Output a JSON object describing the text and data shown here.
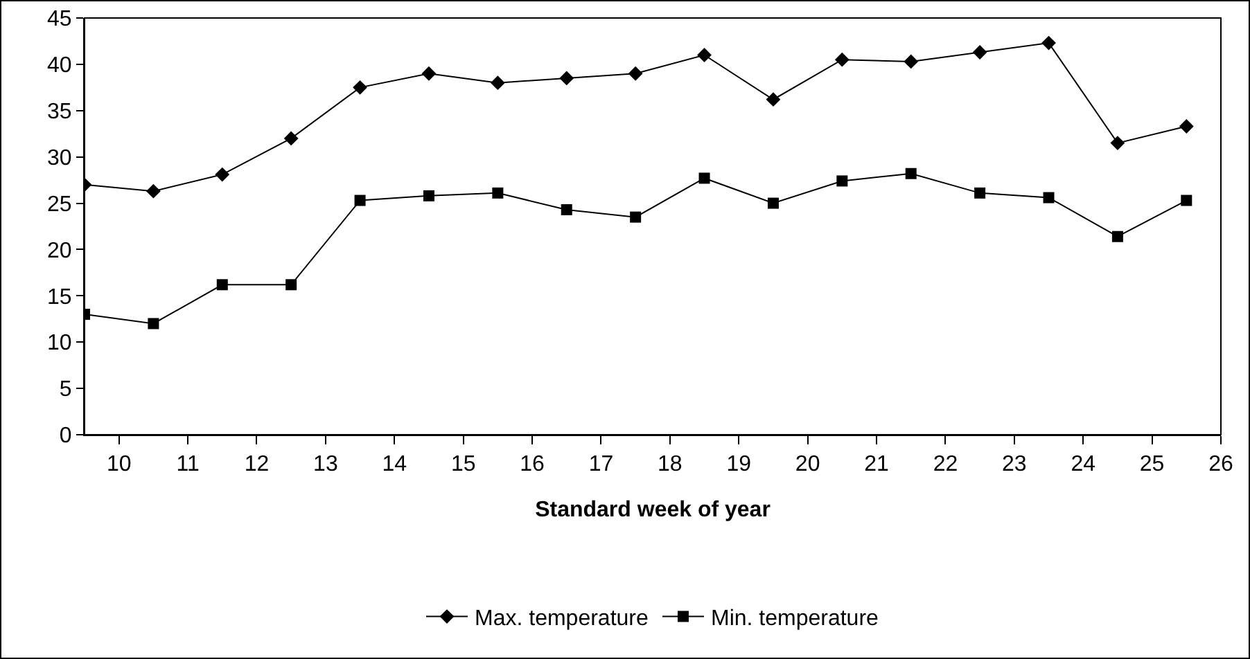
{
  "chart_data": {
    "type": "line",
    "xlabel": "Standard week of year",
    "x": [
      9.5,
      10.5,
      11.5,
      12.5,
      13.5,
      14.5,
      15.5,
      16.5,
      17.5,
      18.5,
      19.5,
      20.5,
      21.5,
      22.5,
      23.5,
      24.5,
      25.5
    ],
    "series": [
      {
        "name": "Max. temperature",
        "color": "#000000",
        "marker": "diamond",
        "values": [
          27,
          26.3,
          28.1,
          32,
          37.5,
          39,
          38,
          38.5,
          39,
          41,
          36.2,
          40.5,
          40.3,
          41.3,
          42.3,
          31.5,
          33.3
        ]
      },
      {
        "name": "Min. temperature",
        "color": "#000000",
        "marker": "square",
        "values": [
          13,
          12,
          16.2,
          16.2,
          25.3,
          25.8,
          26.1,
          24.3,
          23.5,
          27.7,
          25,
          27.4,
          28.2,
          26.1,
          25.6,
          21.4,
          25.3
        ]
      }
    ],
    "xlim": [
      9.5,
      26
    ],
    "xticks": [
      10,
      11,
      12,
      13,
      14,
      15,
      16,
      17,
      18,
      19,
      20,
      21,
      22,
      23,
      24,
      25,
      26
    ],
    "ylim": [
      0,
      45
    ],
    "yticks": [
      0,
      5,
      10,
      15,
      20,
      25,
      30,
      35,
      40,
      45
    ],
    "grid": false,
    "legend": "bottom"
  }
}
